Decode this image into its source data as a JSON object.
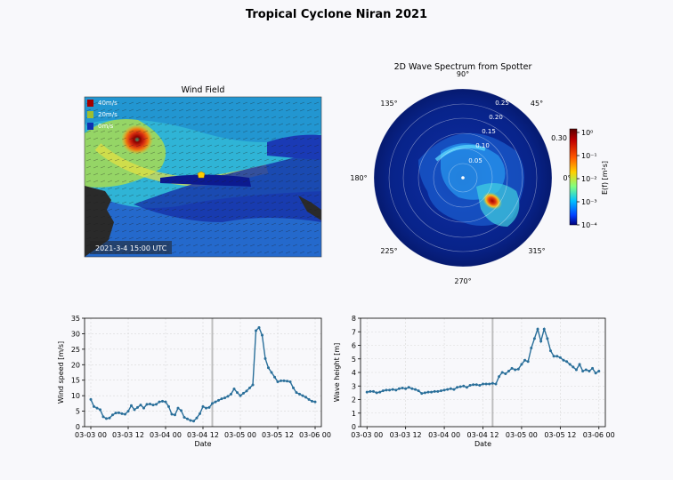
{
  "figure_title": "Tropical Cyclone Niran 2021",
  "colors": {
    "series": "#2a6f9a",
    "marker_line": "#8f8f8f"
  },
  "wind_field": {
    "title": "Wind Field",
    "timestamp": "2021-3-4 15:00 UTC",
    "legend": [
      "40m/s",
      "20m/s",
      "0m/s"
    ]
  },
  "spectrum": {
    "title": "2D Wave Spectrum from Spotter",
    "direction_labels": [
      "90°",
      "45°",
      "0°",
      "315°",
      "270°",
      "225°",
      "180°",
      "135°"
    ],
    "radial_labels": [
      "0.05",
      "0.10",
      "0.15",
      "0.20",
      "0.25",
      "0.30"
    ],
    "colorbar_label": "E(f) [m²s]",
    "colorbar_ticks": [
      "10⁰",
      "10⁻¹",
      "10⁻²",
      "10⁻³",
      "10⁻⁴"
    ]
  },
  "chart_data": [
    {
      "type": "line",
      "title": "",
      "xlabel": "Date",
      "ylabel": "Wind speed [m/s]",
      "x_ticks": [
        "03-03 00",
        "03-03 12",
        "03-04 00",
        "03-04 12",
        "03-05 00",
        "03-05 12",
        "03-06 00"
      ],
      "y_ticks": [
        "0",
        "5",
        "10",
        "15",
        "20",
        "25",
        "30",
        "35"
      ],
      "ylim": [
        0,
        35
      ],
      "xlim_hours": [
        -2,
        74
      ],
      "marker_hour": 39,
      "x_hours": [
        0,
        1,
        2,
        3,
        4,
        5,
        6,
        7,
        8,
        9,
        10,
        11,
        12,
        13,
        14,
        15,
        16,
        17,
        18,
        19,
        20,
        21,
        22,
        23,
        24,
        25,
        26,
        27,
        28,
        29,
        30,
        31,
        32,
        33,
        34,
        35,
        36,
        37,
        38,
        39,
        40,
        41,
        42,
        43,
        44,
        45,
        46,
        47,
        48,
        49,
        50,
        51,
        52,
        53,
        54,
        55,
        56,
        57,
        58,
        59,
        60,
        61,
        62,
        63,
        64,
        65,
        66,
        67,
        68,
        69,
        70,
        71,
        72
      ],
      "values": [
        8.8,
        6.5,
        6.0,
        5.5,
        3.2,
        2.6,
        2.8,
        3.8,
        4.4,
        4.5,
        4.2,
        4.0,
        5.0,
        6.8,
        5.5,
        6.2,
        7.0,
        6.0,
        7.2,
        7.3,
        7.0,
        7.2,
        8.0,
        8.2,
        8.0,
        6.5,
        4.0,
        3.8,
        6.0,
        5.2,
        3.0,
        2.5,
        2.0,
        1.8,
        2.8,
        4.2,
        6.5,
        6.0,
        6.2,
        7.5,
        8.0,
        8.5,
        9.0,
        9.3,
        9.8,
        10.5,
        12.2,
        11.0,
        10.0,
        10.8,
        11.5,
        12.5,
        13.5,
        31.0,
        32.0,
        29.5,
        22.0,
        19.0,
        17.5,
        16.0,
        14.5,
        14.8,
        14.8,
        14.7,
        14.5,
        12.5,
        11.0,
        10.5,
        10.0,
        9.5,
        8.8,
        8.2,
        8.0
      ]
    },
    {
      "type": "line",
      "title": "",
      "xlabel": "Date",
      "ylabel": "Wave height [m]",
      "x_ticks": [
        "03-03 00",
        "03-03 12",
        "03-04 00",
        "03-04 12",
        "03-05 00",
        "03-05 12",
        "03-06 00"
      ],
      "y_ticks": [
        "0",
        "1",
        "2",
        "3",
        "4",
        "5",
        "6",
        "7",
        "8"
      ],
      "ylim": [
        0,
        8
      ],
      "xlim_hours": [
        -2,
        74
      ],
      "marker_hour": 39,
      "x_hours": [
        0,
        1,
        2,
        3,
        4,
        5,
        6,
        7,
        8,
        9,
        10,
        11,
        12,
        13,
        14,
        15,
        16,
        17,
        18,
        19,
        20,
        21,
        22,
        23,
        24,
        25,
        26,
        27,
        28,
        29,
        30,
        31,
        32,
        33,
        34,
        35,
        36,
        37,
        38,
        39,
        40,
        41,
        42,
        43,
        44,
        45,
        46,
        47,
        48,
        49,
        50,
        51,
        52,
        53,
        54,
        55,
        56,
        57,
        58,
        59,
        60,
        61,
        62,
        63,
        64,
        65,
        66,
        67,
        68,
        69,
        70,
        71,
        72
      ],
      "values": [
        2.55,
        2.6,
        2.6,
        2.5,
        2.55,
        2.65,
        2.7,
        2.7,
        2.75,
        2.7,
        2.8,
        2.85,
        2.8,
        2.9,
        2.8,
        2.75,
        2.65,
        2.45,
        2.5,
        2.55,
        2.55,
        2.6,
        2.6,
        2.65,
        2.7,
        2.75,
        2.8,
        2.75,
        2.9,
        2.95,
        3.0,
        2.9,
        3.05,
        3.1,
        3.1,
        3.05,
        3.15,
        3.15,
        3.15,
        3.2,
        3.15,
        3.7,
        4.0,
        3.9,
        4.1,
        4.3,
        4.2,
        4.25,
        4.6,
        4.9,
        4.8,
        5.8,
        6.5,
        7.2,
        6.3,
        7.2,
        6.5,
        5.6,
        5.2,
        5.2,
        5.1,
        4.9,
        4.8,
        4.6,
        4.4,
        4.2,
        4.6,
        4.1,
        4.2,
        4.1,
        4.3,
        3.95,
        4.1
      ]
    }
  ]
}
